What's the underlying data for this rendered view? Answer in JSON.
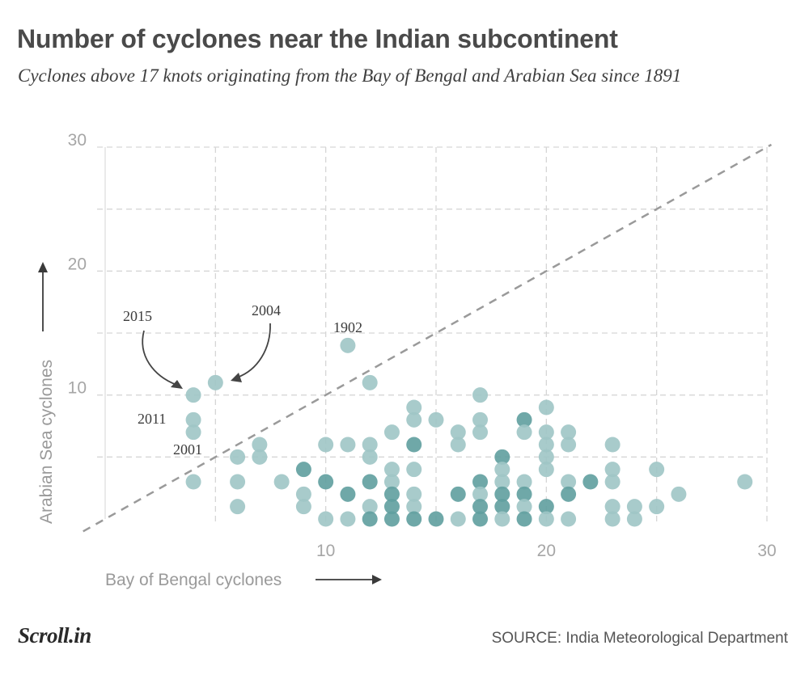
{
  "header": {
    "title": "Number of cyclones near the Indian subcontinent",
    "subtitle": "Cyclones above 17 knots originating from the Bay of Bengal and Arabian Sea since 1891"
  },
  "footer": {
    "logo": "Scroll.in",
    "source": "SOURCE: India Meteorological Department"
  },
  "colors": {
    "point_light": "#9fc5c5",
    "point_dark": "#5f9f9f",
    "grid": "#d6d6d6",
    "diagonal": "#9a9a9a",
    "axis_text": "#a6a6a6"
  },
  "chart_data": {
    "type": "scatter",
    "xlabel": "Bay of Bengal cyclones",
    "ylabel": "Arabian Sea cyclones",
    "xlim": [
      0,
      30
    ],
    "ylim": [
      0,
      30
    ],
    "xticks": [
      10,
      20,
      30
    ],
    "yticks": [
      10,
      20,
      30
    ],
    "grid": true,
    "reference_line": "y = x",
    "points": [
      {
        "x": 4,
        "y": 10,
        "c": 1
      },
      {
        "x": 5,
        "y": 11,
        "c": 1
      },
      {
        "x": 4,
        "y": 8,
        "c": 1
      },
      {
        "x": 4,
        "y": 7,
        "c": 1
      },
      {
        "x": 11,
        "y": 14,
        "c": 1
      },
      {
        "x": 4,
        "y": 3,
        "c": 1
      },
      {
        "x": 6,
        "y": 5,
        "c": 1
      },
      {
        "x": 6,
        "y": 3,
        "c": 1
      },
      {
        "x": 6,
        "y": 1,
        "c": 1
      },
      {
        "x": 7,
        "y": 6,
        "c": 1
      },
      {
        "x": 7,
        "y": 5,
        "c": 1
      },
      {
        "x": 8,
        "y": 3,
        "c": 1
      },
      {
        "x": 9,
        "y": 4,
        "c": 2
      },
      {
        "x": 9,
        "y": 2,
        "c": 1
      },
      {
        "x": 9,
        "y": 1,
        "c": 1
      },
      {
        "x": 10,
        "y": 6,
        "c": 1
      },
      {
        "x": 10,
        "y": 3,
        "c": 2
      },
      {
        "x": 10,
        "y": 0,
        "c": 1
      },
      {
        "x": 11,
        "y": 6,
        "c": 1
      },
      {
        "x": 11,
        "y": 2,
        "c": 2
      },
      {
        "x": 11,
        "y": 0,
        "c": 1
      },
      {
        "x": 12,
        "y": 11,
        "c": 1
      },
      {
        "x": 12,
        "y": 6,
        "c": 1
      },
      {
        "x": 12,
        "y": 5,
        "c": 1
      },
      {
        "x": 12,
        "y": 3,
        "c": 2
      },
      {
        "x": 12,
        "y": 1,
        "c": 1
      },
      {
        "x": 12,
        "y": 0,
        "c": 2
      },
      {
        "x": 13,
        "y": 7,
        "c": 1
      },
      {
        "x": 13,
        "y": 4,
        "c": 1
      },
      {
        "x": 13,
        "y": 3,
        "c": 1
      },
      {
        "x": 13,
        "y": 2,
        "c": 2
      },
      {
        "x": 13,
        "y": 1,
        "c": 2
      },
      {
        "x": 13,
        "y": 0,
        "c": 2
      },
      {
        "x": 14,
        "y": 9,
        "c": 1
      },
      {
        "x": 14,
        "y": 8,
        "c": 1
      },
      {
        "x": 14,
        "y": 6,
        "c": 2
      },
      {
        "x": 14,
        "y": 4,
        "c": 1
      },
      {
        "x": 14,
        "y": 2,
        "c": 1
      },
      {
        "x": 14,
        "y": 1,
        "c": 1
      },
      {
        "x": 14,
        "y": 0,
        "c": 2
      },
      {
        "x": 15,
        "y": 8,
        "c": 1
      },
      {
        "x": 15,
        "y": 0,
        "c": 2
      },
      {
        "x": 16,
        "y": 7,
        "c": 1
      },
      {
        "x": 16,
        "y": 6,
        "c": 1
      },
      {
        "x": 16,
        "y": 2,
        "c": 2
      },
      {
        "x": 16,
        "y": 0,
        "c": 1
      },
      {
        "x": 17,
        "y": 10,
        "c": 1
      },
      {
        "x": 17,
        "y": 8,
        "c": 1
      },
      {
        "x": 17,
        "y": 7,
        "c": 1
      },
      {
        "x": 17,
        "y": 3,
        "c": 2
      },
      {
        "x": 17,
        "y": 2,
        "c": 1
      },
      {
        "x": 17,
        "y": 1,
        "c": 2
      },
      {
        "x": 17,
        "y": 0,
        "c": 2
      },
      {
        "x": 18,
        "y": 5,
        "c": 2
      },
      {
        "x": 18,
        "y": 4,
        "c": 1
      },
      {
        "x": 18,
        "y": 3,
        "c": 1
      },
      {
        "x": 18,
        "y": 2,
        "c": 2
      },
      {
        "x": 18,
        "y": 1,
        "c": 2
      },
      {
        "x": 18,
        "y": 0,
        "c": 1
      },
      {
        "x": 19,
        "y": 8,
        "c": 2
      },
      {
        "x": 19,
        "y": 7,
        "c": 1
      },
      {
        "x": 19,
        "y": 3,
        "c": 1
      },
      {
        "x": 19,
        "y": 2,
        "c": 2
      },
      {
        "x": 19,
        "y": 1,
        "c": 1
      },
      {
        "x": 19,
        "y": 0,
        "c": 2
      },
      {
        "x": 20,
        "y": 9,
        "c": 1
      },
      {
        "x": 20,
        "y": 7,
        "c": 1
      },
      {
        "x": 20,
        "y": 6,
        "c": 1
      },
      {
        "x": 20,
        "y": 5,
        "c": 1
      },
      {
        "x": 20,
        "y": 4,
        "c": 1
      },
      {
        "x": 20,
        "y": 1,
        "c": 2
      },
      {
        "x": 20,
        "y": 0,
        "c": 1
      },
      {
        "x": 21,
        "y": 7,
        "c": 1
      },
      {
        "x": 21,
        "y": 6,
        "c": 1
      },
      {
        "x": 21,
        "y": 3,
        "c": 1
      },
      {
        "x": 21,
        "y": 2,
        "c": 2
      },
      {
        "x": 21,
        "y": 0,
        "c": 1
      },
      {
        "x": 22,
        "y": 3,
        "c": 2
      },
      {
        "x": 23,
        "y": 6,
        "c": 1
      },
      {
        "x": 23,
        "y": 4,
        "c": 1
      },
      {
        "x": 23,
        "y": 3,
        "c": 1
      },
      {
        "x": 23,
        "y": 1,
        "c": 1
      },
      {
        "x": 23,
        "y": 0,
        "c": 1
      },
      {
        "x": 24,
        "y": 1,
        "c": 1
      },
      {
        "x": 24,
        "y": 0,
        "c": 1
      },
      {
        "x": 25,
        "y": 4,
        "c": 1
      },
      {
        "x": 25,
        "y": 1,
        "c": 1
      },
      {
        "x": 26,
        "y": 2,
        "c": 1
      },
      {
        "x": 29,
        "y": 3,
        "c": 1
      }
    ],
    "annotations": [
      {
        "label": "2015",
        "x": 4,
        "y": 10
      },
      {
        "label": "2004",
        "x": 5,
        "y": 11
      },
      {
        "label": "1902",
        "x": 11,
        "y": 14
      },
      {
        "label": "2011",
        "x": 4,
        "y": 8
      },
      {
        "label": "2001",
        "x": 4,
        "y": 7
      }
    ]
  }
}
